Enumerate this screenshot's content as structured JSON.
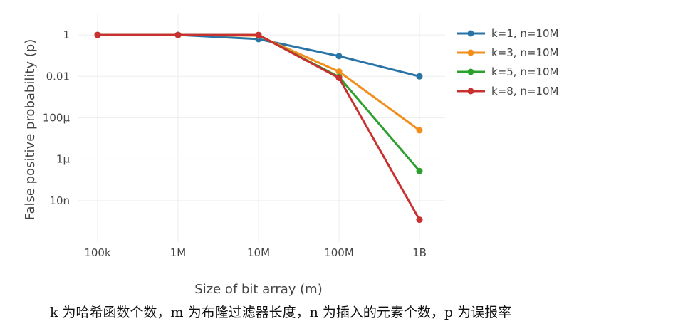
{
  "chart_data": {
    "type": "line",
    "title": "",
    "xlabel": "Size of bit array (m)",
    "ylabel": "False positive probability (p)",
    "x_scale": "log",
    "y_scale": "log",
    "x": [
      100000,
      1000000,
      10000000,
      100000000,
      1000000000
    ],
    "x_tick_labels": [
      "100k",
      "1M",
      "10M",
      "100M",
      "1B"
    ],
    "y_ticks": [
      1,
      0.01,
      0.0001,
      1e-06,
      1e-08
    ],
    "y_tick_labels": [
      "1",
      "0.01",
      "100μ",
      "1μ",
      "10n"
    ],
    "ylim": [
      1e-10,
      10
    ],
    "grid": true,
    "legend_position": "right",
    "series": [
      {
        "name": "k=1, n=10M",
        "color": "#2874a6",
        "values": [
          1,
          1,
          0.63,
          0.095,
          0.01
        ]
      },
      {
        "name": "k=3, n=10M",
        "color": "#f28e1c",
        "values": [
          1,
          1,
          0.92,
          0.017,
          2.5e-05
        ]
      },
      {
        "name": "k=5, n=10M",
        "color": "#2ca02c",
        "values": [
          1,
          1,
          0.98,
          0.0094,
          2.7e-07
        ]
      },
      {
        "name": "k=8, n=10M",
        "color": "#c93131",
        "values": [
          1,
          1,
          1,
          0.0084,
          1.2e-09
        ]
      }
    ]
  },
  "caption": "k 为哈希函数个数，m 为布隆过滤器长度，n 为插入的元素个数，p 为误报率"
}
